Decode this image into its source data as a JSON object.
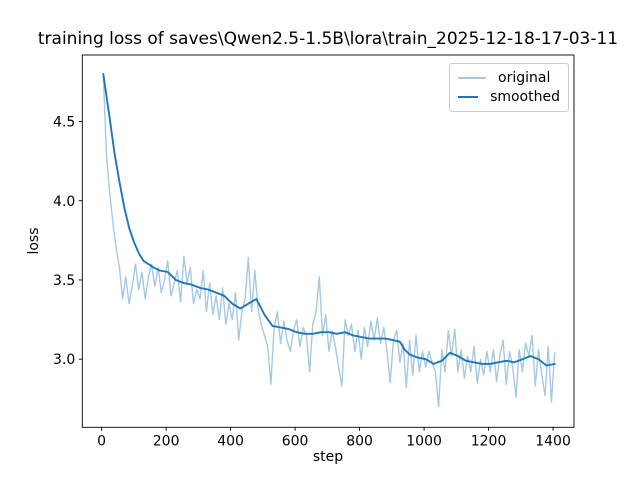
{
  "chart_data": {
    "type": "line",
    "title": "training loss of saves\\Qwen2.5-1.5B\\lora\\train_2025-12-18-17-03-11",
    "xlabel": "step",
    "ylabel": "loss",
    "xlim": [
      -60,
      1465
    ],
    "ylim": [
      2.57,
      4.92
    ],
    "xticks": [
      0,
      200,
      400,
      600,
      800,
      1000,
      1200,
      1400
    ],
    "xtick_labels": [
      "0",
      "200",
      "400",
      "600",
      "800",
      "1000",
      "1200",
      "1400"
    ],
    "yticks": [
      3.0,
      3.5,
      4.0,
      4.5
    ],
    "ytick_labels": [
      "3.0",
      "3.5",
      "4.0",
      "4.5"
    ],
    "grid": false,
    "legend_position": "upper right",
    "background_color": "#ffffff",
    "axis_color": "#000000",
    "series": [
      {
        "name": "original",
        "color": "#a5c9e1",
        "line_width": 1.4,
        "step_start": 5,
        "step_interval": 10,
        "values": [
          4.8,
          4.28,
          4.05,
          3.86,
          3.7,
          3.58,
          3.38,
          3.52,
          3.35,
          3.46,
          3.6,
          3.44,
          3.55,
          3.38,
          3.52,
          3.6,
          3.46,
          3.58,
          3.42,
          3.5,
          3.62,
          3.4,
          3.48,
          3.56,
          3.36,
          3.65,
          3.48,
          3.58,
          3.35,
          3.44,
          3.38,
          3.56,
          3.3,
          3.48,
          3.28,
          3.4,
          3.25,
          3.45,
          3.22,
          3.35,
          3.25,
          3.42,
          3.12,
          3.3,
          3.38,
          3.64,
          3.3,
          3.56,
          3.32,
          3.22,
          3.15,
          3.08,
          2.84,
          3.2,
          3.3,
          3.1,
          3.24,
          3.12,
          3.05,
          3.18,
          3.25,
          3.08,
          3.2,
          3.15,
          2.92,
          3.22,
          3.3,
          3.52,
          3.15,
          3.28,
          3.05,
          3.18,
          3.08,
          2.95,
          2.83,
          3.25,
          3.15,
          3.22,
          3.05,
          3.18,
          3.0,
          3.2,
          3.08,
          3.24,
          3.12,
          3.26,
          3.1,
          3.2,
          3.05,
          2.85,
          3.12,
          3.18,
          2.98,
          3.1,
          2.82,
          3.12,
          2.9,
          3.15,
          2.92,
          3.05,
          2.95,
          3.05,
          2.98,
          2.92,
          2.7,
          3.06,
          2.92,
          3.18,
          3.02,
          3.19,
          2.92,
          3.06,
          2.88,
          3.02,
          2.92,
          3.08,
          2.85,
          3.0,
          2.9,
          3.05,
          2.92,
          3.06,
          2.86,
          3.02,
          3.12,
          2.84,
          3.05,
          2.95,
          2.76,
          3.06,
          2.92,
          3.1,
          3.02,
          3.15,
          2.83,
          3.06,
          2.9,
          2.77,
          3.08,
          2.73,
          3.04
        ]
      },
      {
        "name": "smoothed",
        "color": "#1f77b4",
        "line_width": 1.9,
        "points": [
          [
            5,
            4.8
          ],
          [
            15,
            4.66
          ],
          [
            25,
            4.52
          ],
          [
            40,
            4.3
          ],
          [
            55,
            4.12
          ],
          [
            70,
            3.96
          ],
          [
            85,
            3.83
          ],
          [
            100,
            3.74
          ],
          [
            115,
            3.67
          ],
          [
            130,
            3.62
          ],
          [
            145,
            3.6
          ],
          [
            160,
            3.58
          ],
          [
            180,
            3.56
          ],
          [
            205,
            3.55
          ],
          [
            230,
            3.5
          ],
          [
            255,
            3.48
          ],
          [
            280,
            3.47
          ],
          [
            305,
            3.45
          ],
          [
            330,
            3.44
          ],
          [
            355,
            3.42
          ],
          [
            380,
            3.4
          ],
          [
            405,
            3.35
          ],
          [
            430,
            3.32
          ],
          [
            455,
            3.35
          ],
          [
            480,
            3.38
          ],
          [
            505,
            3.28
          ],
          [
            530,
            3.21
          ],
          [
            555,
            3.2
          ],
          [
            580,
            3.19
          ],
          [
            605,
            3.17
          ],
          [
            630,
            3.16
          ],
          [
            655,
            3.16
          ],
          [
            680,
            3.17
          ],
          [
            705,
            3.17
          ],
          [
            730,
            3.16
          ],
          [
            755,
            3.17
          ],
          [
            780,
            3.15
          ],
          [
            805,
            3.14
          ],
          [
            830,
            3.13
          ],
          [
            855,
            3.13
          ],
          [
            880,
            3.13
          ],
          [
            905,
            3.12
          ],
          [
            925,
            3.11
          ],
          [
            940,
            3.06
          ],
          [
            955,
            3.03
          ],
          [
            980,
            3.01
          ],
          [
            1005,
            3.0
          ],
          [
            1030,
            2.97
          ],
          [
            1055,
            2.99
          ],
          [
            1080,
            3.04
          ],
          [
            1105,
            3.02
          ],
          [
            1130,
            2.99
          ],
          [
            1155,
            2.98
          ],
          [
            1180,
            2.97
          ],
          [
            1205,
            2.97
          ],
          [
            1230,
            2.98
          ],
          [
            1255,
            2.99
          ],
          [
            1280,
            2.98
          ],
          [
            1305,
            3.0
          ],
          [
            1330,
            3.02
          ],
          [
            1355,
            3.0
          ],
          [
            1380,
            2.96
          ],
          [
            1405,
            2.97
          ]
        ]
      }
    ]
  }
}
